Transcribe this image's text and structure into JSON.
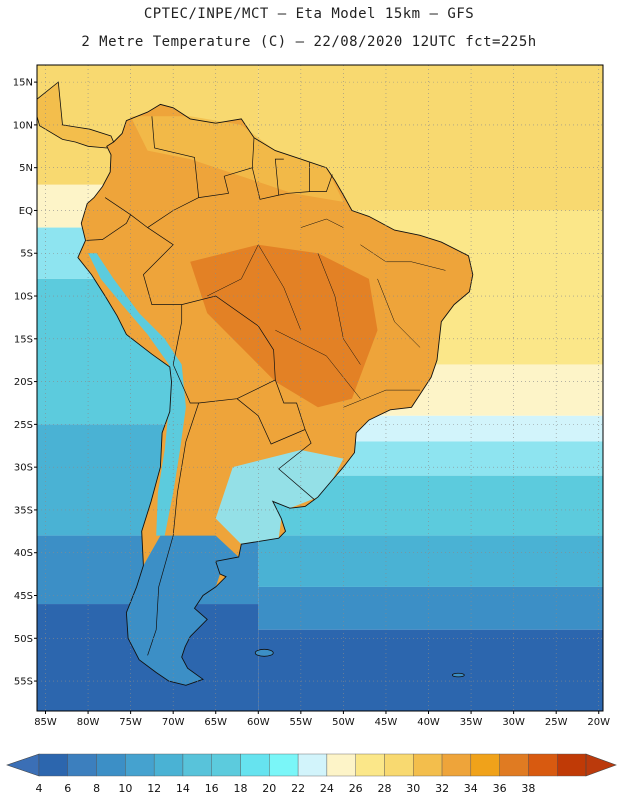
{
  "header": {
    "line1": "CPTEC/INPE/MCT –  Eta Model 15km – GFS",
    "line2": "2 Metre Temperature (C) – 22/08/2020 12UTC fct=225h"
  },
  "map": {
    "lat_labels": [
      "15N",
      "10N",
      "5N",
      "EQ",
      "5S",
      "10S",
      "15S",
      "20S",
      "25S",
      "30S",
      "35S",
      "40S",
      "45S",
      "50S",
      "55S"
    ],
    "lat_values": [
      15,
      10,
      5,
      0,
      -5,
      -10,
      -15,
      -20,
      -25,
      -30,
      -35,
      -40,
      -45,
      -50,
      -55
    ],
    "lon_labels": [
      "85W",
      "80W",
      "75W",
      "70W",
      "65W",
      "60W",
      "55W",
      "50W",
      "45W",
      "40W",
      "35W",
      "30W",
      "25W",
      "20W"
    ],
    "lon_values": [
      -85,
      -80,
      -75,
      -70,
      -65,
      -60,
      -55,
      -50,
      -45,
      -40,
      -35,
      -30,
      -25,
      -20
    ],
    "extent": {
      "lon_min": -86,
      "lon_max": -19.5,
      "lat_min": -58.5,
      "lat_max": 17
    },
    "ocean_bands": [
      {
        "lat_top": 17,
        "lat_bottom": 0,
        "color": "#f8d970"
      },
      {
        "lat_top": 0,
        "lat_bottom": -18,
        "color": "#fbe789"
      },
      {
        "lat_top": -18,
        "lat_bottom": -24,
        "color": "#fdf4c8"
      },
      {
        "lat_top": -24,
        "lat_bottom": -27,
        "color": "#d2f4fb"
      },
      {
        "lat_top": -27,
        "lat_bottom": -31,
        "color": "#8ee4f0"
      },
      {
        "lat_top": -31,
        "lat_bottom": -38,
        "color": "#5ccbdd"
      },
      {
        "lat_top": -38,
        "lat_bottom": -44,
        "color": "#4ab2d4"
      },
      {
        "lat_top": -44,
        "lat_bottom": -49,
        "color": "#3c8fc6"
      },
      {
        "lat_top": -49,
        "lat_bottom": -58.5,
        "color": "#2c66ae"
      }
    ],
    "pacific_bands": [
      {
        "lat_top": 17,
        "lat_bottom": 3,
        "color": "#f8d970"
      },
      {
        "lat_top": 3,
        "lat_bottom": -2,
        "color": "#fdf4c8"
      },
      {
        "lat_top": -2,
        "lat_bottom": -8,
        "color": "#8ee4f0"
      },
      {
        "lat_top": -8,
        "lat_bottom": -25,
        "color": "#5ccbdd"
      },
      {
        "lat_top": -25,
        "lat_bottom": -38,
        "color": "#4ab2d4"
      },
      {
        "lat_top": -38,
        "lat_bottom": -46,
        "color": "#3c8fc6"
      },
      {
        "lat_top": -46,
        "lat_bottom": -58.5,
        "color": "#2c66ae"
      }
    ],
    "land_color_main": "#eea43a",
    "land_color_hot": "#e07b22",
    "land_color_warm": "#f3be4c",
    "land_color_south": "#8ee4f0",
    "land_color_andes": "#5ccbdd",
    "land_color_patagonia": "#3c8fc6",
    "border_color": "#111111"
  },
  "colorbar": {
    "values": [
      "4",
      "6",
      "8",
      "10",
      "12",
      "14",
      "16",
      "18",
      "20",
      "22",
      "24",
      "26",
      "28",
      "30",
      "32",
      "34",
      "36",
      "38"
    ],
    "colors": [
      "#2c66ae",
      "#3c7fbe",
      "#3c8fc6",
      "#45a2cf",
      "#4ab2d4",
      "#58c3da",
      "#5ccbdd",
      "#66e3ef",
      "#7af6f8",
      "#d2f4fb",
      "#fdf4c8",
      "#fbe789",
      "#f8d970",
      "#f3be4c",
      "#eea43a",
      "#f0a21a",
      "#e07b22",
      "#d85a10",
      "#c03a06"
    ],
    "left_arrow_color": "#3b6fb6",
    "right_arrow_color": "#bb3a0c"
  }
}
